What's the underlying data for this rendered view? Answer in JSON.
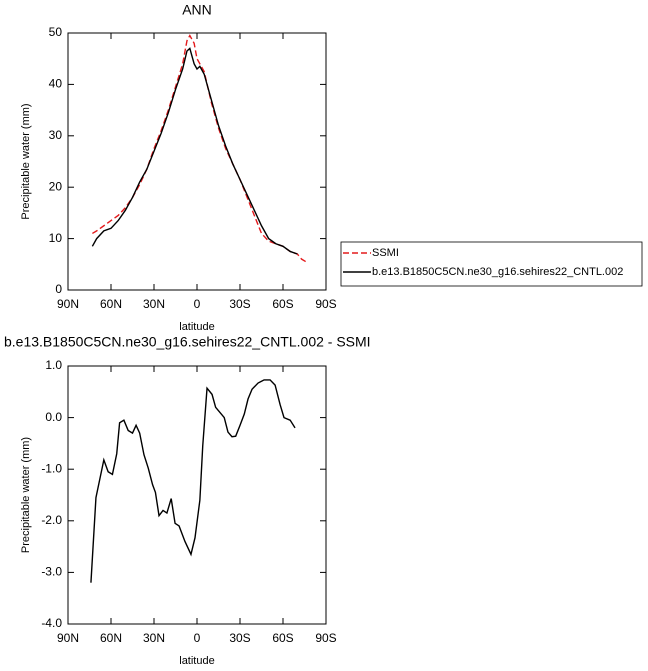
{
  "chart_data": [
    {
      "type": "line",
      "title": "ANN",
      "y_label": "Precipitable water (mm)",
      "x_label": "latitude",
      "xlim": [
        90,
        -90
      ],
      "xticks": [
        {
          "value": 90,
          "label": "90N"
        },
        {
          "value": 60,
          "label": "60N"
        },
        {
          "value": 30,
          "label": "30N"
        },
        0,
        {
          "value": -30,
          "label": "30S"
        },
        {
          "value": -60,
          "label": "60S"
        },
        {
          "value": -90,
          "label": "90S"
        }
      ],
      "ylim": [
        0,
        50
      ],
      "yticks": [
        0,
        10,
        20,
        30,
        40,
        50
      ],
      "legend": "outside-right",
      "x": [
        73,
        70,
        65,
        60,
        55,
        50,
        45,
        40,
        35,
        30,
        25,
        20,
        15,
        10,
        7,
        5,
        2,
        0,
        -2,
        -5,
        -10,
        -15,
        -20,
        -25,
        -30,
        -35,
        -40,
        -45,
        -50,
        -55,
        -60,
        -65,
        -70,
        -73,
        -76
      ],
      "series": [
        {
          "name": "SSMI",
          "color": "#e41a1c",
          "style": "dashed",
          "values": [
            11,
            11.5,
            12.5,
            13.5,
            14.5,
            16,
            18,
            20.5,
            23.5,
            27.5,
            31,
            35,
            39.5,
            44,
            48.5,
            49.5,
            48,
            45,
            44,
            42.5,
            36.5,
            31.5,
            27.5,
            24.5,
            21.5,
            18,
            14.5,
            11,
            9.5,
            9,
            8.5,
            7.5,
            7,
            6,
            5.5
          ]
        },
        {
          "name": "b.e13.B1850C5CN.ne30_g16.sehires22_CNTL.002",
          "color": "#000000",
          "style": "solid",
          "values": [
            8.5,
            10,
            11.5,
            12,
            13.5,
            15.5,
            18,
            21,
            23.5,
            27,
            30.5,
            34.5,
            39,
            43,
            46.5,
            47,
            44,
            43,
            43.5,
            42,
            37,
            32,
            28,
            24.5,
            21.5,
            18.5,
            15.5,
            12.5,
            10,
            9,
            8.5,
            7.5,
            7,
            null,
            null
          ]
        }
      ]
    },
    {
      "type": "line",
      "title": "b.e13.B1850C5CN.ne30_g16.sehires22_CNTL.002 - SSMI",
      "y_label": "Precipitable water (mm)",
      "x_label": "latitude",
      "xlim": [
        90,
        -90
      ],
      "xticks": [
        {
          "value": 90,
          "label": "90N"
        },
        {
          "value": 60,
          "label": "60N"
        },
        {
          "value": 30,
          "label": "30N"
        },
        0,
        {
          "value": -30,
          "label": "30S"
        },
        {
          "value": -60,
          "label": "60S"
        },
        {
          "value": -90,
          "label": "90S"
        }
      ],
      "ylim": [
        -4,
        1
      ],
      "yticks": [
        {
          "value": -4,
          "label": "-4.0"
        },
        {
          "value": -3,
          "label": "-3.0"
        },
        {
          "value": -2,
          "label": "-2.0"
        },
        {
          "value": -1,
          "label": "-1.0"
        },
        {
          "value": 0,
          "label": "0.0"
        },
        {
          "value": 1,
          "label": "1.0"
        }
      ],
      "x": [
        74,
        70.5,
        65,
        62,
        59,
        56,
        54,
        51,
        48,
        45,
        42.5,
        40,
        37,
        34,
        31,
        29,
        26.5,
        23.7,
        21,
        18,
        15.3,
        12.5,
        8.4,
        4.2,
        1.4,
        -2,
        -4,
        -7,
        -10.5,
        -13,
        -16,
        -19,
        -21.6,
        -24.4,
        -27,
        -30,
        -33,
        -35.6,
        -38.4,
        -42.6,
        -46.8,
        -51,
        -54.5,
        -58,
        -60.7,
        -65,
        -68.4
      ],
      "series": [
        {
          "color": "#000000",
          "style": "solid",
          "values": [
            -3.2,
            -1.55,
            -0.82,
            -1.05,
            -1.1,
            -0.7,
            -0.1,
            -0.05,
            -0.25,
            -0.3,
            -0.15,
            -0.3,
            -0.72,
            -0.98,
            -1.3,
            -1.45,
            -1.9,
            -1.8,
            -1.85,
            -1.57,
            -2.05,
            -2.1,
            -2.4,
            -2.65,
            -2.33,
            -1.6,
            -0.55,
            0.57,
            0.45,
            0.2,
            0.1,
            0,
            -0.28,
            -0.37,
            -0.36,
            -0.15,
            0.07,
            0.36,
            0.55,
            0.67,
            0.73,
            0.73,
            0.63,
            0.25,
            0,
            -0.05,
            -0.2
          ]
        }
      ]
    }
  ]
}
